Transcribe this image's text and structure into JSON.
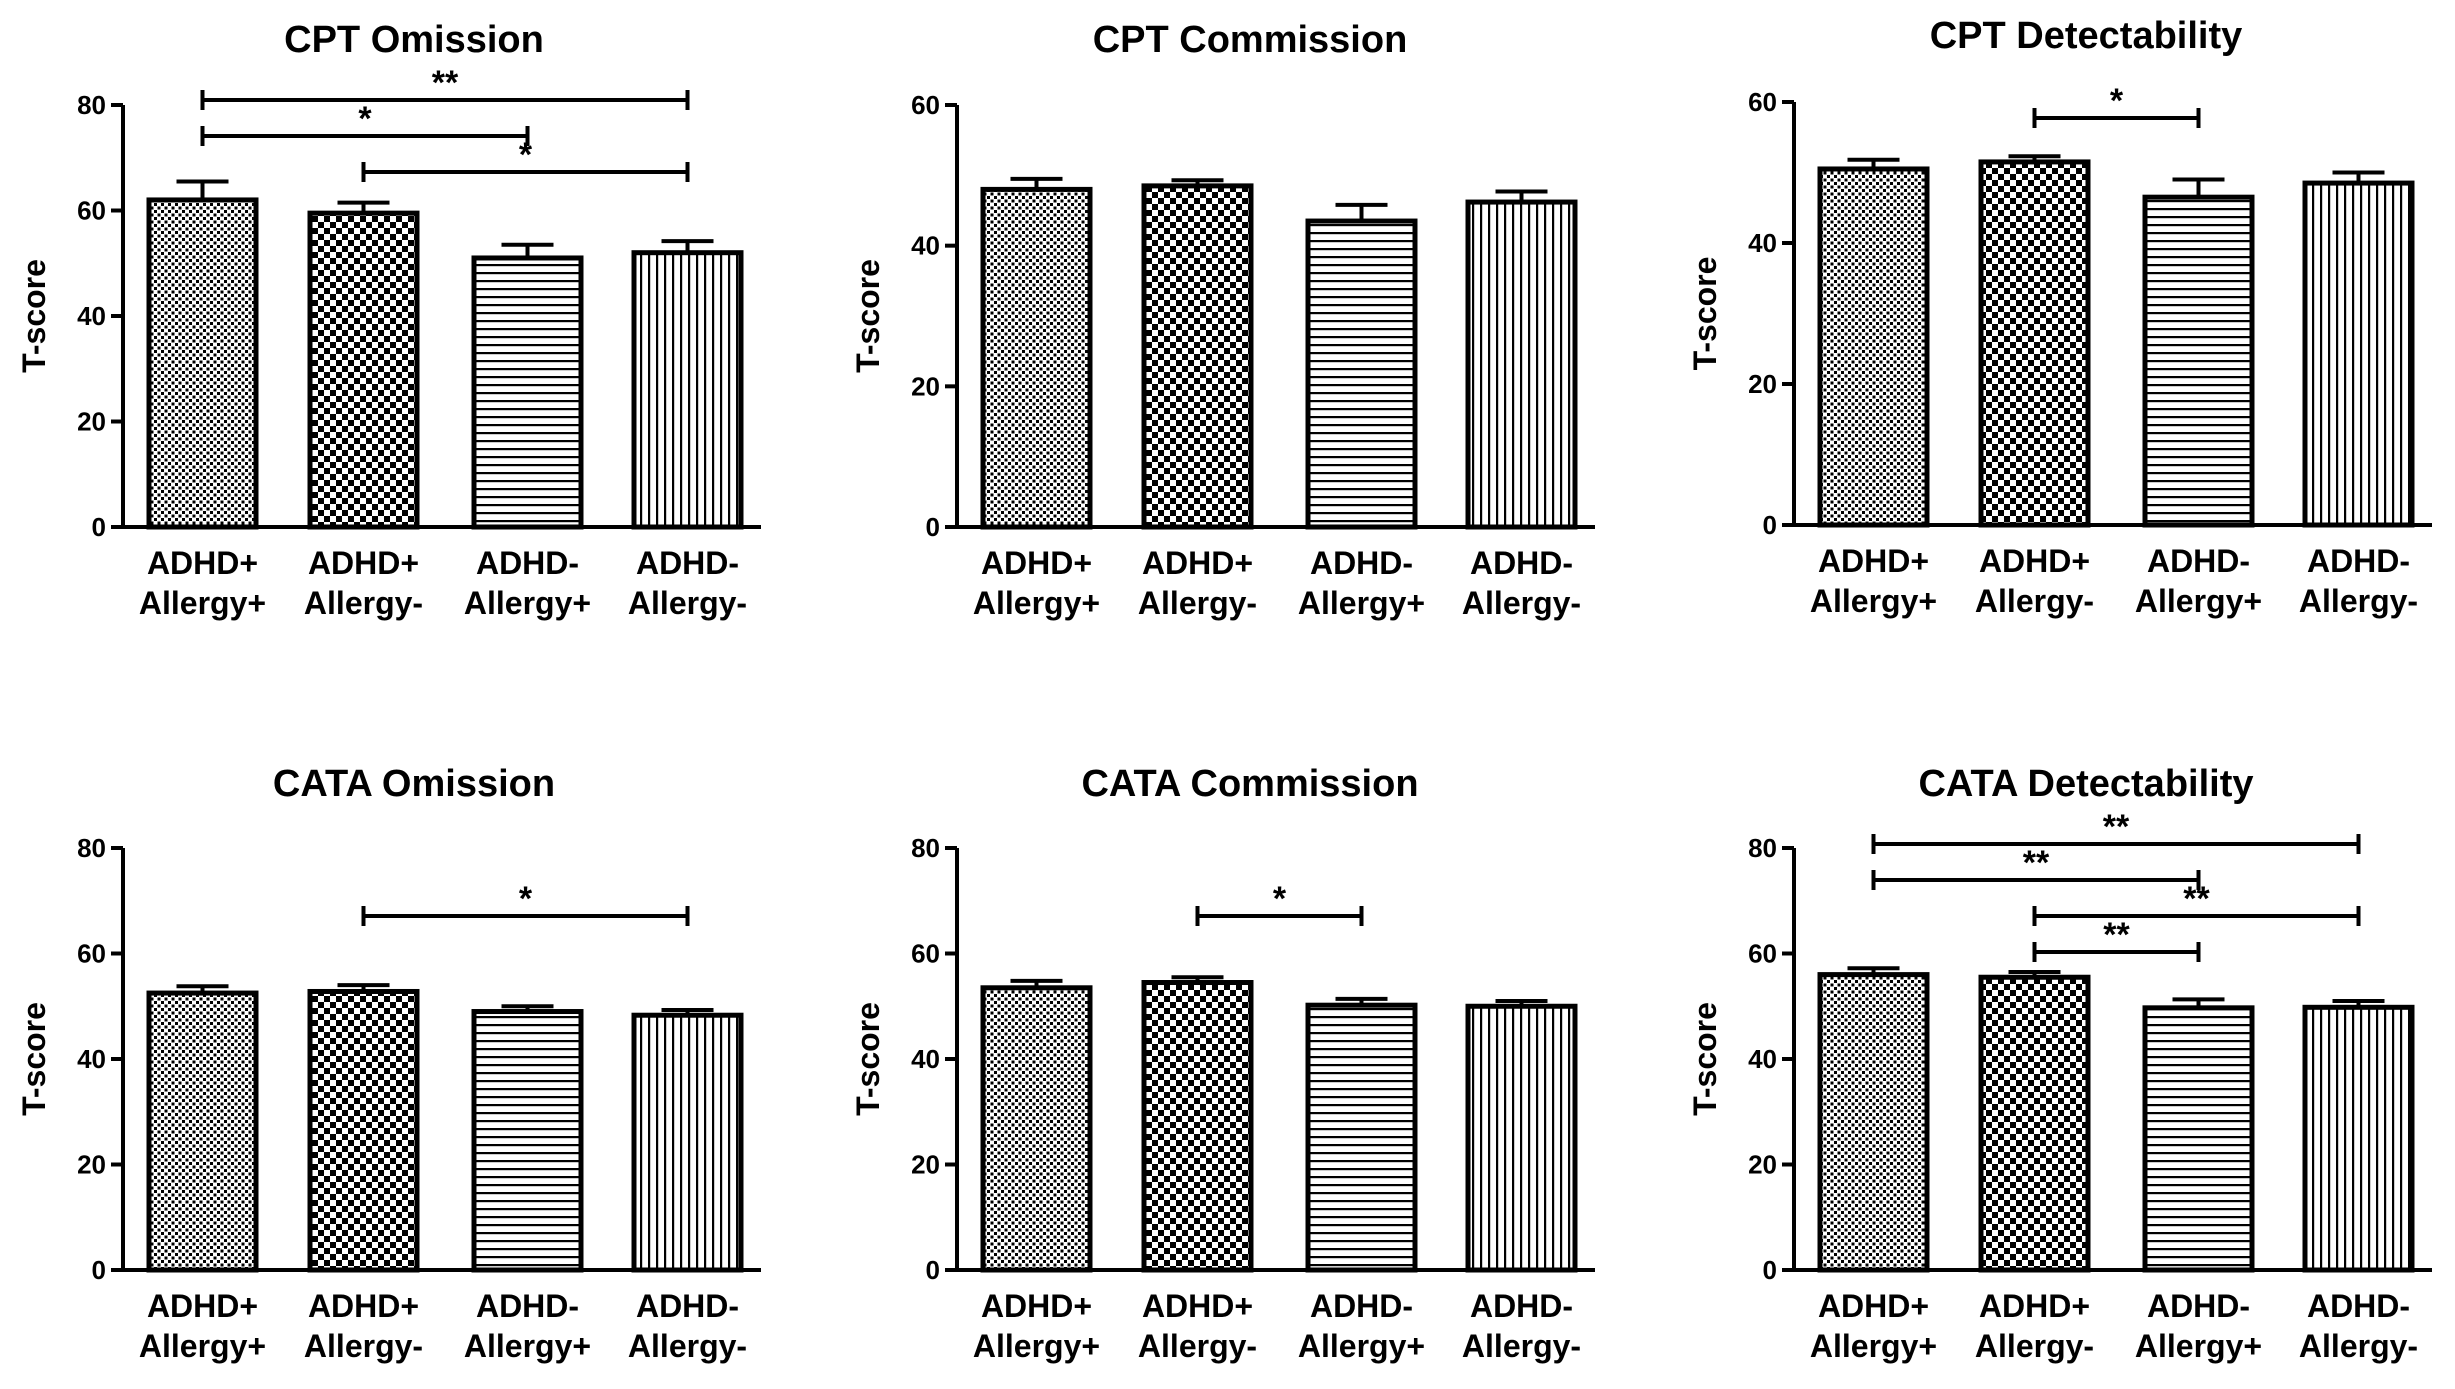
{
  "figure": {
    "categories": [
      [
        "ADHD+",
        "Allergy+"
      ],
      [
        "ADHD+",
        "Allergy-"
      ],
      [
        "ADHD-",
        "Allergy+"
      ],
      [
        "ADHD-",
        "Allergy-"
      ]
    ],
    "patterns": [
      "dots",
      "checker",
      "horizontal",
      "vertical"
    ]
  },
  "chart_data": [
    {
      "type": "bar",
      "title": "CPT Omission",
      "ylabel": "T-score",
      "ylim": [
        0,
        80
      ],
      "yticks": [
        "0",
        "20",
        "40",
        "60",
        "80"
      ],
      "values": [
        62.0,
        59.5,
        51.0,
        52.0
      ],
      "errors": [
        3.5,
        2.0,
        2.5,
        2.2
      ],
      "significance": [
        {
          "from": 0,
          "to": 3,
          "label": "**"
        },
        {
          "from": 0,
          "to": 2,
          "label": "*"
        },
        {
          "from": 1,
          "to": 3,
          "label": "*"
        }
      ]
    },
    {
      "type": "bar",
      "title": "CPT Commission",
      "ylabel": "T-score",
      "ylim": [
        0,
        60
      ],
      "yticks": [
        "0",
        "20",
        "40",
        "60"
      ],
      "values": [
        48.0,
        48.5,
        43.5,
        46.2
      ],
      "errors": [
        1.5,
        0.8,
        2.3,
        1.5
      ],
      "significance": []
    },
    {
      "type": "bar",
      "title": "CPT Detectability",
      "ylabel": "T-score",
      "ylim": [
        0,
        60
      ],
      "yticks": [
        "0",
        "20",
        "40",
        "60"
      ],
      "values": [
        50.5,
        51.5,
        46.5,
        48.5
      ],
      "errors": [
        1.3,
        0.8,
        2.5,
        1.5
      ],
      "significance": [
        {
          "from": 1,
          "to": 2,
          "label": "*"
        }
      ]
    },
    {
      "type": "bar",
      "title": "CATA Omission",
      "ylabel": "T-score",
      "ylim": [
        0,
        80
      ],
      "yticks": [
        "0",
        "20",
        "40",
        "60",
        "80"
      ],
      "values": [
        52.5,
        52.8,
        49.0,
        48.3
      ],
      "errors": [
        1.3,
        1.2,
        1.0,
        1.0
      ],
      "significance": [
        {
          "from": 1,
          "to": 3,
          "label": "*"
        }
      ]
    },
    {
      "type": "bar",
      "title": "CATA Commission",
      "ylabel": "T-score",
      "ylim": [
        0,
        80
      ],
      "yticks": [
        "0",
        "20",
        "40",
        "60",
        "80"
      ],
      "values": [
        53.5,
        54.5,
        50.2,
        50.0
      ],
      "errors": [
        1.3,
        1.0,
        1.2,
        1.0
      ],
      "significance": [
        {
          "from": 1,
          "to": 2,
          "label": "*"
        }
      ]
    },
    {
      "type": "bar",
      "title": "CATA Detectability",
      "ylabel": "T-score",
      "ylim": [
        0,
        80
      ],
      "yticks": [
        "0",
        "20",
        "40",
        "60",
        "80"
      ],
      "values": [
        56.0,
        55.5,
        49.7,
        49.8
      ],
      "errors": [
        1.2,
        1.0,
        1.6,
        1.2
      ],
      "significance": [
        {
          "from": 0,
          "to": 3,
          "label": "**"
        },
        {
          "from": 0,
          "to": 2,
          "label": "**"
        },
        {
          "from": 1,
          "to": 3,
          "label": "**"
        },
        {
          "from": 1,
          "to": 2,
          "label": "**"
        }
      ]
    }
  ]
}
